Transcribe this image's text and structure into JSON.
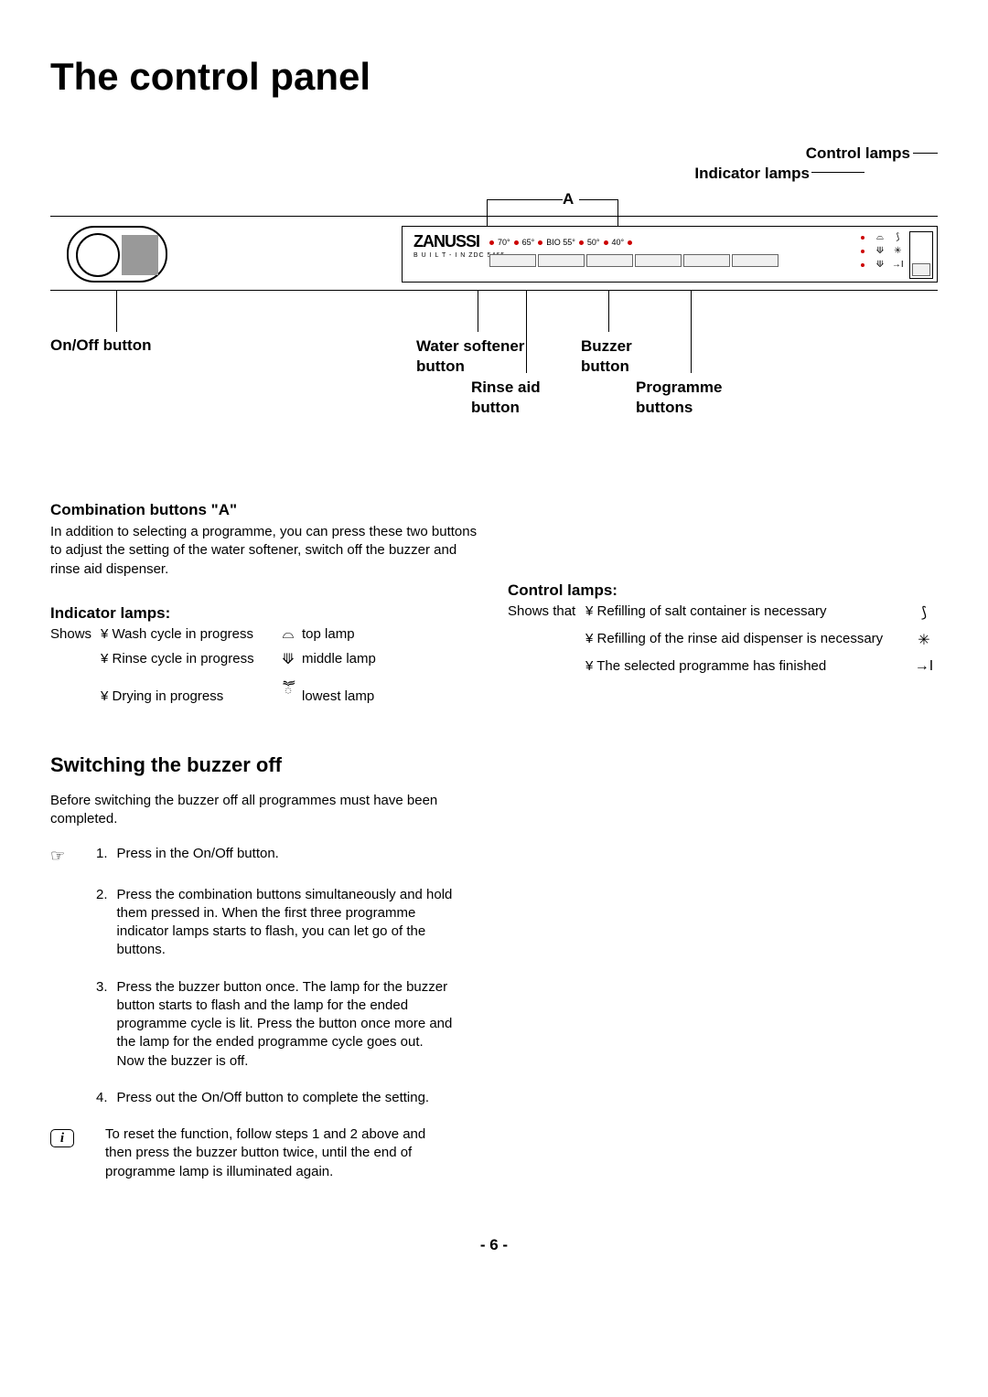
{
  "title": "The control panel",
  "diagram": {
    "labels": {
      "control_lamps": "Control lamps",
      "indicator_lamps": "Indicator lamps",
      "a": "A",
      "onoff": "On/Off button",
      "water_softener": "Water softener\nbutton",
      "rinse_aid": "Rinse aid\nbutton",
      "buzzer": "Buzzer\nbutton",
      "programme": "Programme\nbuttons"
    },
    "brand": "ZANUSSI",
    "model": "B U I L T - I N  ZDC 5465",
    "programs": [
      "70°",
      "65°",
      "BIO 55°",
      "50°",
      "40°",
      ""
    ]
  },
  "combination": {
    "title": "Combination buttons \"A\"",
    "text": "In addition to selecting a programme, you can press these two buttons to adjust the setting of the water softener, switch off the buzzer and rinse aid dispenser."
  },
  "indicator_lamps": {
    "title": "Indicator lamps:",
    "shows": "Shows",
    "rows": [
      {
        "bullet": "¥",
        "text": "Wash cycle in progress",
        "pos": "top lamp"
      },
      {
        "bullet": "¥",
        "text": "Rinse cycle in progress",
        "pos": "middle lamp"
      },
      {
        "bullet": "¥",
        "text": "Drying in progress",
        "pos": "lowest lamp"
      }
    ]
  },
  "control_lamps": {
    "title": "Control lamps:",
    "shows": "Shows that",
    "rows": [
      {
        "bullet": "¥",
        "text": "Reﬁlling of salt container is necessary"
      },
      {
        "bullet": "¥",
        "text": "Reﬁlling of the rinse aid dispenser is necessary"
      },
      {
        "bullet": "¥",
        "text": "The selected programme has ﬁnished"
      }
    ]
  },
  "buzzer": {
    "title": "Switching the buzzer off",
    "intro": "Before switching the buzzer off all programmes must have been completed.",
    "steps": [
      "Press in the On/Off button.",
      "Press the combination buttons simultaneously and hold them pressed in. When the ﬁrst three programme indicator lamps starts to ﬂash, you can let go of the buttons.",
      "Press the buzzer button once. The lamp for the buzzer button starts to ﬂash and the lamp for the ended programme cycle is lit. Press the button once more and the lamp for the ended programme cycle goes out. Now the buzzer is off.",
      "Press out the On/Off button to complete the setting."
    ],
    "reset": "To reset the function, follow steps 1 and 2 above and then press the buzzer button twice, until the end of programme lamp is illuminated again."
  },
  "footer": "- 6 -"
}
